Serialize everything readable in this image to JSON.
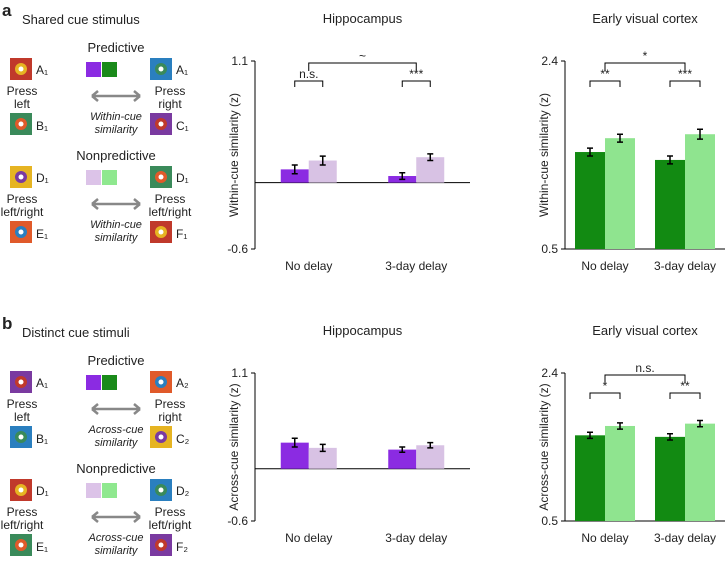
{
  "schematics": [
    {
      "letter": "a",
      "title": "Shared cue stimulus",
      "rows": [
        {
          "label": "Predictive",
          "colors": [
            "#8b2be2",
            "#1a8a1a"
          ],
          "left_top": "A₁",
          "left_action": [
            "Press",
            "left"
          ],
          "left_bottom": "B₁",
          "right_top": "A₁",
          "right_action": [
            "Press",
            "right"
          ],
          "right_bottom": "C₁",
          "relation": [
            "Within-cue",
            "similarity"
          ]
        },
        {
          "label": "Nonpredictive",
          "colors": [
            "#dcc3e8",
            "#8fe88f"
          ],
          "left_top": "D₁",
          "left_action": [
            "Press",
            "left/right"
          ],
          "left_bottom": "E₁",
          "right_top": "D₁",
          "right_action": [
            "Press",
            "left/right"
          ],
          "right_bottom": "F₁",
          "relation": [
            "Within-cue",
            "similarity"
          ]
        }
      ]
    },
    {
      "letter": "b",
      "title": "Distinct cue stimuli",
      "rows": [
        {
          "label": "Predictive",
          "colors": [
            "#8b2be2",
            "#1a8a1a"
          ],
          "left_top": "A₁",
          "left_action": [
            "Press",
            "left"
          ],
          "left_bottom": "B₁",
          "right_top": "A₂",
          "right_action": [
            "Press",
            "right"
          ],
          "right_bottom": "C₂",
          "relation": [
            "Across-cue",
            "similarity"
          ]
        },
        {
          "label": "Nonpredictive",
          "colors": [
            "#dcc3e8",
            "#8fe88f"
          ],
          "left_top": "D₁",
          "left_action": [
            "Press",
            "left/right"
          ],
          "left_bottom": "E₁",
          "right_top": "D₂",
          "right_action": [
            "Press",
            "left/right"
          ],
          "right_bottom": "F₂",
          "relation": [
            "Across-cue",
            "similarity"
          ]
        }
      ]
    }
  ],
  "chart_data": [
    {
      "type": "bar",
      "title": "Hippocampus",
      "y_label": "Within-cue similarity (z)",
      "categories": [
        "No delay",
        "3-day delay"
      ],
      "series": [
        {
          "color": "#8b2be2",
          "values": [
            0.12,
            0.06
          ],
          "errors": [
            0.04,
            0.03
          ]
        },
        {
          "color": "#d8c2e4",
          "values": [
            0.2,
            0.23
          ],
          "errors": [
            0.04,
            0.03
          ]
        }
      ],
      "ylim": [
        -0.6,
        1.1
      ],
      "yticks": [
        -0.6,
        1.1
      ],
      "pair_labels": [
        "n.s.",
        "***"
      ],
      "group_label": "~"
    },
    {
      "type": "bar",
      "title": "Early visual cortex",
      "y_label": "Within-cue similarity (z)",
      "categories": [
        "No delay",
        "3-day delay"
      ],
      "series": [
        {
          "color": "#128a12",
          "values": [
            1.48,
            1.4
          ],
          "errors": [
            0.04,
            0.04
          ]
        },
        {
          "color": "#8fe48f",
          "values": [
            1.62,
            1.66
          ],
          "errors": [
            0.04,
            0.05
          ]
        }
      ],
      "ylim": [
        0.5,
        2.4
      ],
      "yticks": [
        0.5,
        2.4
      ],
      "pair_labels": [
        "**",
        "***"
      ],
      "group_label": "*"
    },
    {
      "type": "bar",
      "title": "Hippocampus",
      "y_label": "Across-cue similarity (z)",
      "categories": [
        "No delay",
        "3-day delay"
      ],
      "series": [
        {
          "color": "#8b2be2",
          "values": [
            0.3,
            0.22
          ],
          "errors": [
            0.05,
            0.03
          ]
        },
        {
          "color": "#d8c2e4",
          "values": [
            0.24,
            0.27
          ],
          "errors": [
            0.04,
            0.03
          ]
        }
      ],
      "ylim": [
        -0.6,
        1.1
      ],
      "yticks": [
        -0.6,
        1.1
      ]
    },
    {
      "type": "bar",
      "title": "Early visual cortex",
      "y_label": "Across-cue similarity (z)",
      "categories": [
        "No delay",
        "3-day delay"
      ],
      "series": [
        {
          "color": "#128a12",
          "values": [
            1.6,
            1.58
          ],
          "errors": [
            0.04,
            0.04
          ]
        },
        {
          "color": "#8fe48f",
          "values": [
            1.72,
            1.75
          ],
          "errors": [
            0.04,
            0.04
          ]
        }
      ],
      "ylim": [
        0.5,
        2.4
      ],
      "yticks": [
        0.5,
        2.4
      ],
      "pair_labels": [
        "*",
        "**"
      ],
      "group_label": "n.s."
    }
  ]
}
